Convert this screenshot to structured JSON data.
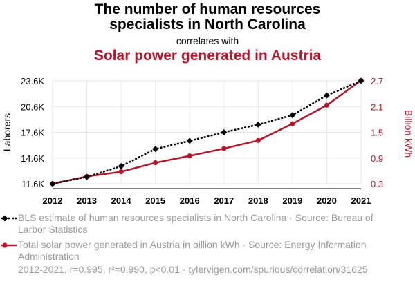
{
  "title_line1": "The number of human resources",
  "title_line2": "specialists in North Carolina",
  "correlates_text": "correlates with",
  "subtitle": "Solar power generated in Austria",
  "footer": "2012-2021, r=0.995, r²=0.990, p<0.01 · tylervigen.com/spurious/correlation/31625",
  "colors": {
    "series1": "#000000",
    "series2": "#b5182c",
    "grid": "#e6e6e6",
    "muted": "#9a9a9a"
  },
  "chart_data": {
    "type": "line",
    "x": [
      "2012",
      "2013",
      "2014",
      "2015",
      "2016",
      "2017",
      "2018",
      "2019",
      "2020",
      "2021"
    ],
    "left_axis": {
      "label": "Laborers",
      "ticks": [
        "11.6K",
        "14.6K",
        "17.6K",
        "20.6K",
        "23.6K"
      ],
      "tick_values": [
        11600,
        14600,
        17600,
        20600,
        23600
      ],
      "range": [
        11600,
        23600
      ]
    },
    "right_axis": {
      "label": "Billion kWh",
      "ticks": [
        "0.3",
        "0.9",
        "1.5",
        "2.1",
        "2.7"
      ],
      "tick_values": [
        0.3,
        0.9,
        1.5,
        2.1,
        2.7
      ],
      "range": [
        0.3,
        2.7
      ]
    },
    "series": [
      {
        "name": "BLS estimate of human resources specialists in North Carolina · Source: Bureau of Larbor Statistics",
        "axis": "left",
        "style": "dotted",
        "marker": "diamond",
        "values": [
          11600,
          12400,
          13650,
          15650,
          16600,
          17600,
          18500,
          19600,
          21900,
          23600
        ]
      },
      {
        "name": "Total solar power generated in Austria in billion kWh · Source: Energy Information Administration",
        "axis": "right",
        "style": "solid",
        "marker": "circle",
        "values": [
          0.3,
          0.47,
          0.58,
          0.79,
          0.95,
          1.12,
          1.31,
          1.7,
          2.13,
          2.71
        ]
      }
    ],
    "grid": true,
    "legend_position": "bottom"
  }
}
